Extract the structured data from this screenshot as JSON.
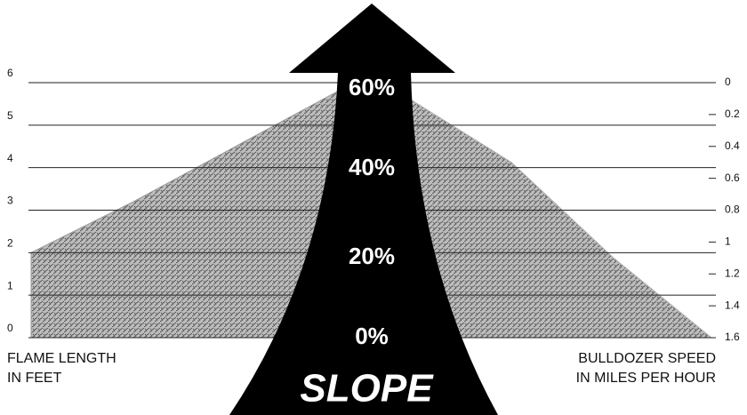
{
  "chart_data": {
    "type": "area",
    "categories": [
      "0%",
      "20%",
      "40%",
      "60%"
    ],
    "category_axis_label": "SLOPE",
    "series": [
      {
        "name": [
          "FLAME LENGTH",
          "IN FEET"
        ],
        "color": "#9a9a9a",
        "values": [
          2,
          3.2,
          4.5,
          5.8
        ]
      },
      {
        "name": [
          "BULLDOZER SPEED",
          "IN MILES PER HOUR"
        ],
        "color": "#b0b0b0",
        "axis": "y2",
        "values": [
          1.6,
          1.1,
          0.5,
          0.1
        ]
      }
    ],
    "ylim": [
      0,
      6
    ],
    "yticks": [
      0,
      1,
      2,
      3,
      4,
      5,
      6
    ],
    "y2lim": [
      1.6,
      0
    ],
    "y2ticks": [
      0,
      0.2,
      0.4,
      0.6,
      0.8,
      1,
      1.2,
      1.4,
      1.6
    ],
    "grid": true
  }
}
